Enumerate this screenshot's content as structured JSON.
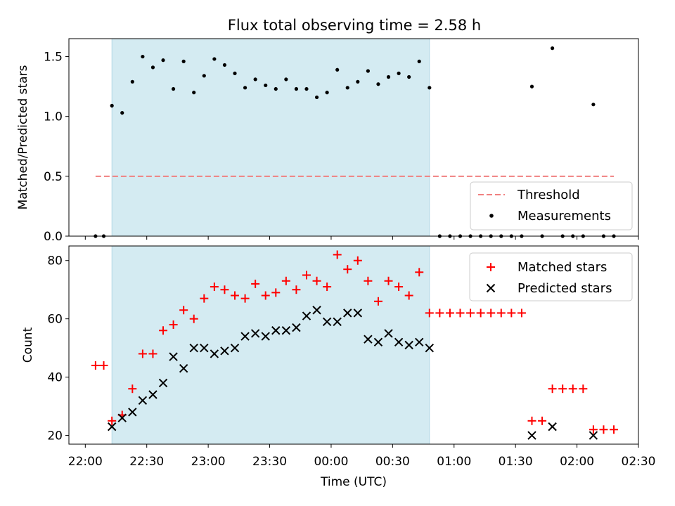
{
  "chart_data": [
    {
      "panel": "top",
      "type": "scatter",
      "title": "Flux total observing time = 2.58 h",
      "ylabel": "Matched/Predicted stars",
      "xlabel": "",
      "x_unit": "time (UTC)",
      "xlim": [
        "21:52",
        "02:30"
      ],
      "ylim": [
        0,
        1.65
      ],
      "yticks": [
        0.0,
        0.5,
        1.0,
        1.5
      ],
      "ytick_labels": [
        "0.0",
        "0.5",
        "1.0",
        "1.5"
      ],
      "shaded_span": {
        "start": "22:13",
        "end": "00:48",
        "color": "#d4ebf2"
      },
      "legend_position": "lower-right",
      "series": [
        {
          "name": "Threshold",
          "style": "dashed-line",
          "color": "#f08080",
          "x": [
            "22:05",
            "02:18"
          ],
          "y": [
            0.5,
            0.5
          ]
        },
        {
          "name": "Measurements",
          "style": "dot",
          "color": "#000000",
          "x": [
            "22:05",
            "22:09",
            "22:13",
            "22:18",
            "22:23",
            "22:28",
            "22:33",
            "22:38",
            "22:43",
            "22:48",
            "22:53",
            "22:58",
            "23:03",
            "23:08",
            "23:13",
            "23:18",
            "23:23",
            "23:28",
            "23:33",
            "23:38",
            "23:43",
            "23:48",
            "23:53",
            "23:58",
            "00:03",
            "00:08",
            "00:13",
            "00:18",
            "00:23",
            "00:28",
            "00:33",
            "00:38",
            "00:43",
            "00:48",
            "00:53",
            "00:58",
            "01:03",
            "01:08",
            "01:13",
            "01:18",
            "01:23",
            "01:28",
            "01:33",
            "01:38",
            "01:43",
            "01:48",
            "01:53",
            "01:58",
            "02:03",
            "02:08",
            "02:13",
            "02:18"
          ],
          "y": [
            0,
            0,
            1.09,
            1.03,
            1.29,
            1.5,
            1.41,
            1.47,
            1.23,
            1.46,
            1.2,
            1.34,
            1.48,
            1.43,
            1.36,
            1.24,
            1.31,
            1.26,
            1.23,
            1.31,
            1.23,
            1.23,
            1.16,
            1.2,
            1.39,
            1.24,
            1.29,
            1.38,
            1.27,
            1.33,
            1.36,
            1.33,
            1.46,
            1.24,
            0,
            0,
            0,
            0,
            0,
            0,
            0,
            0,
            0,
            1.25,
            0,
            1.57,
            0,
            0,
            0,
            1.1,
            0,
            0
          ]
        }
      ]
    },
    {
      "panel": "bottom",
      "type": "scatter",
      "title": "",
      "ylabel": "Count",
      "xlabel": "Time (UTC)",
      "x_unit": "time (UTC)",
      "xlim": [
        "21:52",
        "02:30"
      ],
      "ylim": [
        17,
        85
      ],
      "yticks": [
        20,
        40,
        60,
        80
      ],
      "ytick_labels": [
        "20",
        "40",
        "60",
        "80"
      ],
      "xticks": [
        "22:00",
        "22:30",
        "23:00",
        "23:30",
        "00:00",
        "00:30",
        "01:00",
        "01:30",
        "02:00",
        "02:30"
      ],
      "xtick_labels": [
        "22:00",
        "22:30",
        "23:00",
        "23:30",
        "00:00",
        "00:30",
        "01:00",
        "01:30",
        "02:00",
        "02:30"
      ],
      "shaded_span": {
        "start": "22:13",
        "end": "00:48",
        "color": "#d4ebf2"
      },
      "legend_position": "upper-right",
      "series": [
        {
          "name": "Matched stars",
          "style": "plus",
          "color": "#ff0000",
          "x": [
            "22:05",
            "22:09",
            "22:13",
            "22:18",
            "22:23",
            "22:28",
            "22:33",
            "22:38",
            "22:43",
            "22:48",
            "22:53",
            "22:58",
            "23:03",
            "23:08",
            "23:13",
            "23:18",
            "23:23",
            "23:28",
            "23:33",
            "23:38",
            "23:43",
            "23:48",
            "23:53",
            "23:58",
            "00:03",
            "00:08",
            "00:13",
            "00:18",
            "00:23",
            "00:28",
            "00:33",
            "00:38",
            "00:43",
            "00:48",
            "00:53",
            "00:58",
            "01:03",
            "01:08",
            "01:13",
            "01:18",
            "01:23",
            "01:28",
            "01:33",
            "01:38",
            "01:43",
            "01:48",
            "01:53",
            "01:58",
            "02:03",
            "02:08",
            "02:13",
            "02:18"
          ],
          "y": [
            44,
            44,
            25,
            27,
            36,
            48,
            48,
            56,
            58,
            63,
            60,
            67,
            71,
            70,
            68,
            67,
            72,
            68,
            69,
            73,
            70,
            75,
            73,
            71,
            82,
            77,
            80,
            73,
            66,
            73,
            71,
            68,
            76,
            62,
            62,
            62,
            62,
            62,
            62,
            62,
            62,
            62,
            62,
            25,
            25,
            36,
            36,
            36,
            36,
            22,
            22,
            22
          ]
        },
        {
          "name": "Predicted stars",
          "style": "x",
          "color": "#000000",
          "x": [
            "22:13",
            "22:18",
            "22:23",
            "22:28",
            "22:33",
            "22:38",
            "22:43",
            "22:48",
            "22:53",
            "22:58",
            "23:03",
            "23:08",
            "23:13",
            "23:18",
            "23:23",
            "23:28",
            "23:33",
            "23:38",
            "23:43",
            "23:48",
            "23:53",
            "23:58",
            "00:03",
            "00:08",
            "00:13",
            "00:18",
            "00:23",
            "00:28",
            "00:33",
            "00:38",
            "00:43",
            "00:48",
            "01:38",
            "01:48",
            "02:08"
          ],
          "y": [
            23,
            26,
            28,
            32,
            34,
            38,
            47,
            43,
            50,
            50,
            48,
            49,
            50,
            54,
            55,
            54,
            56,
            56,
            57,
            61,
            63,
            59,
            59,
            62,
            62,
            53,
            52,
            55,
            52,
            51,
            52,
            50,
            20,
            23,
            20
          ]
        }
      ]
    }
  ]
}
